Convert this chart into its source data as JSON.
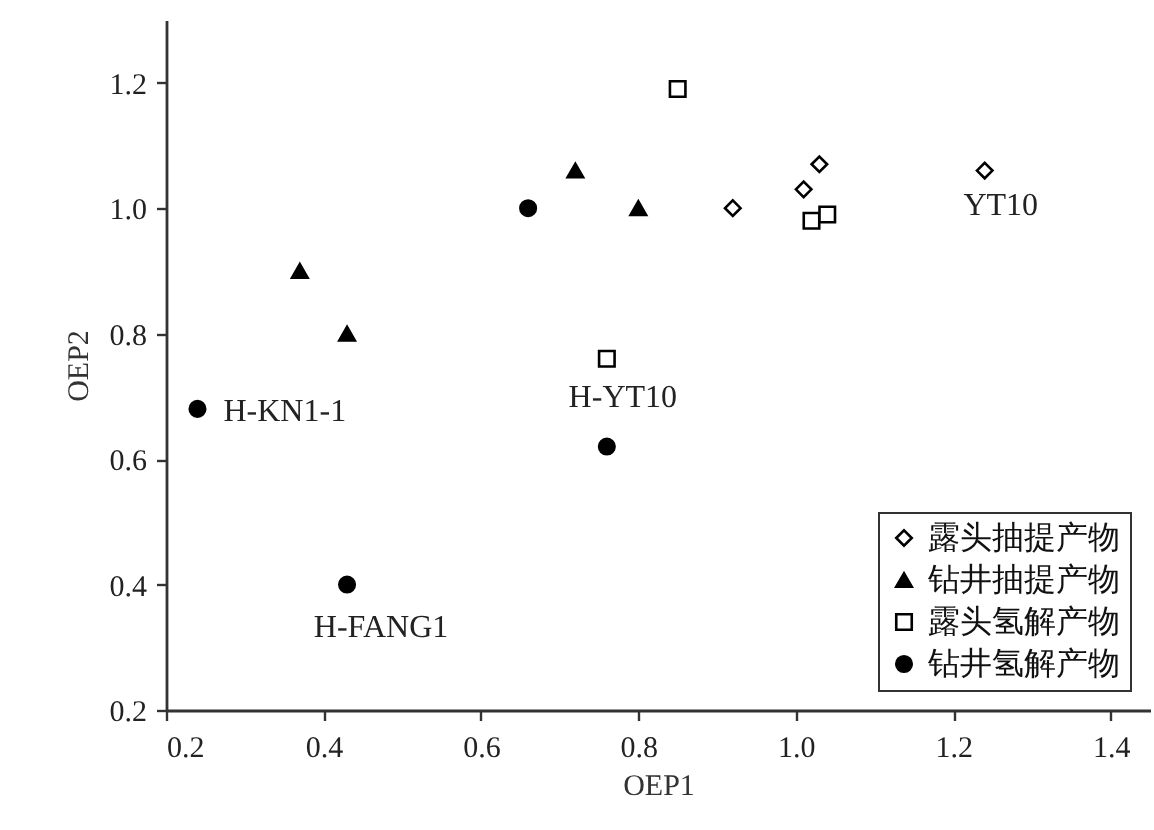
{
  "chart_data": {
    "type": "scatter",
    "xlabel": "OEP1",
    "ylabel": "OEP2",
    "xlim": [
      0.2,
      1.45
    ],
    "ylim": [
      0.2,
      1.3
    ],
    "xticks": [
      0.2,
      0.4,
      0.6,
      0.8,
      {
        "value": 1,
        "label": "1.0"
      },
      1.2,
      1.4
    ],
    "yticks": [
      0.2,
      0.4,
      0.6,
      0.8,
      {
        "value": 1,
        "label": "1.0"
      },
      1.2
    ],
    "grid": false,
    "legend": "bottom right",
    "series": [
      {
        "name": "露头抽提产物",
        "color": "#000000",
        "marker": "diamond",
        "x": [
          0.92,
          1.01,
          1.03,
          1.24
        ],
        "values": [
          1.0,
          1.03,
          1.07,
          1.06
        ]
      },
      {
        "name": "钻井抽提产物",
        "color": "#000000",
        "marker": "triangle",
        "x": [
          0.37,
          0.43,
          0.72,
          0.8
        ],
        "values": [
          0.9,
          0.8,
          1.06,
          1.0
        ]
      },
      {
        "name": "露头氢解产物",
        "color": "#000000",
        "marker": "square",
        "x": [
          0.85,
          1.02,
          1.04,
          0.76
        ],
        "values": [
          1.19,
          0.98,
          0.99,
          0.76
        ]
      },
      {
        "name": "钻井氢解产物",
        "color": "#000000",
        "marker": "circle",
        "x": [
          0.66,
          0.24,
          0.43,
          0.76
        ],
        "values": [
          1.0,
          0.68,
          0.4,
          0.62
        ]
      }
    ],
    "annotations": [
      {
        "text": "YT10",
        "x": 1.24,
        "y": 1.06
      },
      {
        "text": "H-YT10",
        "x": 0.76,
        "y": 0.76
      },
      {
        "text": "H-KN1-1",
        "x": 0.24,
        "y": 0.68
      },
      {
        "text": "H-FANG1",
        "x": 0.43,
        "y": 0.4
      }
    ]
  }
}
